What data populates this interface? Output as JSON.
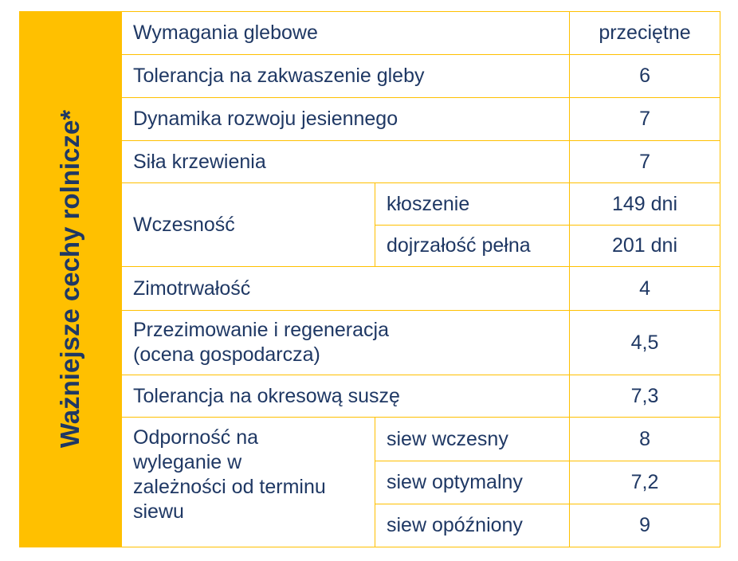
{
  "side_label": "Ważniejsze cechy rolnicze*",
  "rows": {
    "soil": {
      "label": "Wymagania glebowe",
      "value": "przeciętne"
    },
    "acid": {
      "label": "Tolerancja na zakwaszenie gleby",
      "value": "6"
    },
    "autumn": {
      "label": "Dynamika rozwoju jesiennego",
      "value": "7"
    },
    "tiller": {
      "label": "Siła krzewienia",
      "value": "7"
    },
    "early": {
      "label": "Wczesność",
      "sub": [
        {
          "label": "kłoszenie",
          "value": "149 dni"
        },
        {
          "label": "dojrzałość pełna",
          "value": "201 dni"
        }
      ]
    },
    "winter": {
      "label": "Zimotrwałość",
      "value": "4"
    },
    "overwinter": {
      "label_line1": "Przezimowanie i regeneracja",
      "label_line2": "(ocena gospodarcza)",
      "value": "4,5"
    },
    "drought": {
      "label": "Tolerancja na okresową suszę",
      "value": "7,3"
    },
    "lodging": {
      "label_lines": [
        "Odporność na",
        "wyleganie w",
        "zależności od terminu",
        "siewu"
      ],
      "sub": [
        {
          "label": "siew wczesny",
          "value": "8"
        },
        {
          "label": "siew optymalny",
          "value": "7,2"
        },
        {
          "label": "siew opóźniony",
          "value": "9"
        }
      ]
    }
  }
}
